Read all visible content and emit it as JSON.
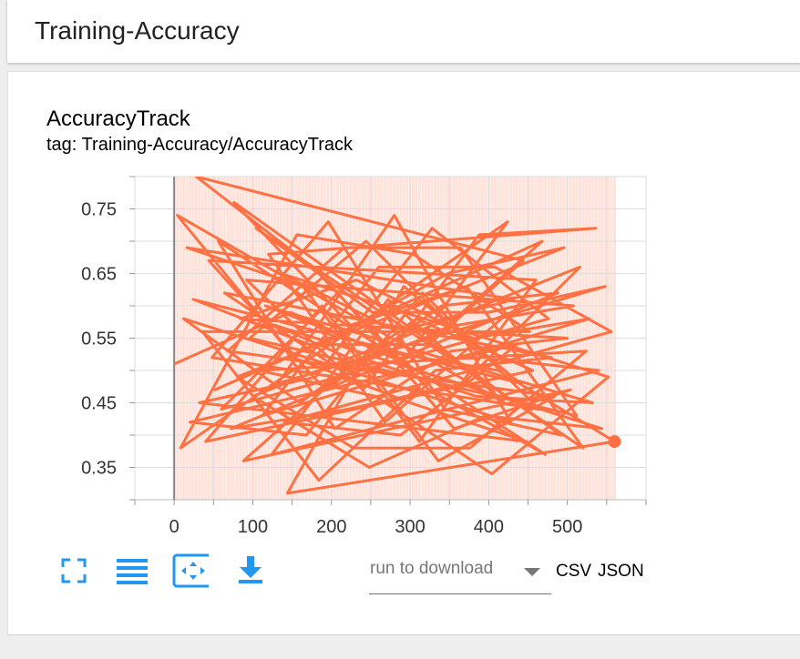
{
  "header": {
    "title": "Training-Accuracy"
  },
  "card": {
    "title": "AccuracyTrack",
    "tag": "tag: Training-Accuracy/AccuracyTrack"
  },
  "toolbar": {
    "fullscreen_icon": "fullscreen-icon",
    "log_scale_icon": "lines-icon",
    "fit_domain_icon": "fit-domain-icon",
    "download_icon": "download-icon",
    "run_select_placeholder": "run to download",
    "csv_label": "CSV",
    "json_label": "JSON"
  },
  "colors": {
    "series": "#ff7043",
    "smoothed_band": "#ffccbc",
    "accent": "#2196f3"
  },
  "chart_data": {
    "type": "line",
    "title": "AccuracyTrack",
    "xlim": [
      -50,
      600
    ],
    "ylim": [
      0.3,
      0.8
    ],
    "xticks": [
      0,
      100,
      200,
      300,
      400,
      500
    ],
    "yticks": [
      0.35,
      0.45,
      0.55,
      0.65,
      0.75
    ],
    "xtick_labels": [
      "0",
      "100",
      "200",
      "300",
      "400",
      "500"
    ],
    "ytick_labels": [
      "0.35",
      "0.45",
      "0.55",
      "0.65",
      "0.75"
    ],
    "grid": true,
    "series": [
      {
        "x": [
          0,
          4,
          8,
          12,
          16,
          20,
          24,
          28,
          32,
          36,
          40,
          44,
          48,
          52,
          56,
          60,
          64,
          68,
          72,
          76,
          80,
          84,
          88,
          92,
          96,
          100,
          104,
          108,
          112,
          116,
          120,
          124,
          128,
          132,
          136,
          140,
          144,
          148,
          152,
          156,
          160,
          164,
          168,
          172,
          176,
          180,
          184,
          188,
          192,
          196,
          200,
          204,
          208,
          212,
          216,
          220,
          224,
          228,
          232,
          236,
          240,
          244,
          248,
          252,
          256,
          260,
          264,
          268,
          272,
          276,
          280,
          284,
          288,
          292,
          296,
          300,
          304,
          308,
          312,
          316,
          320,
          324,
          328,
          332,
          336,
          340,
          344,
          348,
          352,
          356,
          360,
          364,
          368,
          372,
          376,
          380,
          384,
          388,
          392,
          396,
          400,
          404,
          408,
          412,
          416,
          420,
          424,
          428,
          432,
          436,
          440,
          444,
          448,
          452,
          456,
          460,
          464,
          468,
          472,
          476,
          480,
          484,
          488,
          492,
          496,
          500,
          504,
          508,
          512,
          516,
          520,
          524,
          528,
          532,
          536,
          540,
          544,
          548,
          552,
          556,
          560
        ],
        "y": [
          0.51,
          0.74,
          0.38,
          0.58,
          0.69,
          0.42,
          0.61,
          0.8,
          0.45,
          0.56,
          0.39,
          0.67,
          0.52,
          0.47,
          0.7,
          0.44,
          0.62,
          0.53,
          0.41,
          0.76,
          0.49,
          0.58,
          0.36,
          0.64,
          0.55,
          0.46,
          0.72,
          0.5,
          0.43,
          0.6,
          0.68,
          0.37,
          0.57,
          0.48,
          0.65,
          0.42,
          0.31,
          0.59,
          0.52,
          0.71,
          0.45,
          0.63,
          0.4,
          0.54,
          0.66,
          0.49,
          0.33,
          0.6,
          0.47,
          0.73,
          0.55,
          0.41,
          0.62,
          0.5,
          0.69,
          0.44,
          0.57,
          0.38,
          0.64,
          0.52,
          0.47,
          0.7,
          0.35,
          0.59,
          0.46,
          0.66,
          0.53,
          0.42,
          0.61,
          0.49,
          0.74,
          0.56,
          0.4,
          0.63,
          0.51,
          0.45,
          0.68,
          0.58,
          0.39,
          0.62,
          0.54,
          0.47,
          0.72,
          0.5,
          0.36,
          0.6,
          0.44,
          0.65,
          0.53,
          0.41,
          0.57,
          0.69,
          0.48,
          0.63,
          0.38,
          0.55,
          0.46,
          0.71,
          0.52,
          0.43,
          0.59,
          0.34,
          0.66,
          0.5,
          0.58,
          0.45,
          0.73,
          0.42,
          0.61,
          0.54,
          0.48,
          0.67,
          0.39,
          0.56,
          0.5,
          0.64,
          0.44,
          0.7,
          0.37,
          0.58,
          0.52,
          0.46,
          0.62,
          0.4,
          0.69,
          0.55,
          0.47,
          0.6,
          0.43,
          0.66,
          0.38,
          0.53,
          0.58,
          0.45,
          0.72,
          0.5,
          0.41,
          0.63,
          0.49,
          0.56,
          0.39
        ]
      }
    ]
  }
}
